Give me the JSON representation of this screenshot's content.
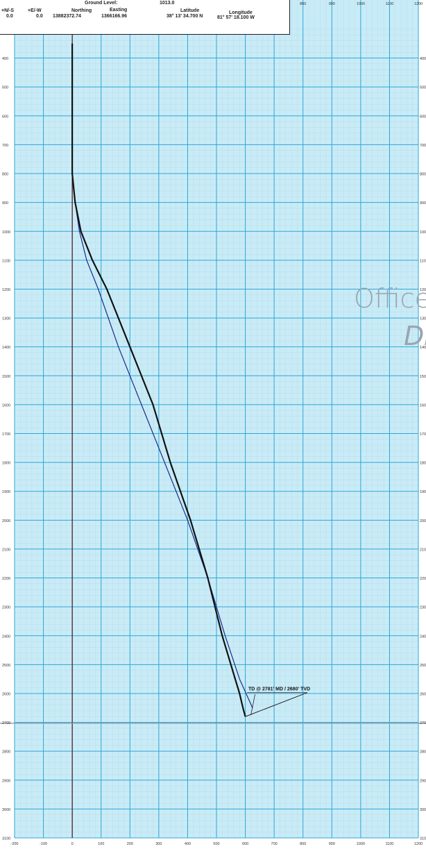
{
  "header": {
    "ground_level_label": "Ground Level:",
    "ground_level_value": "1013.0",
    "ns_label": "+N/-S",
    "ns_value": "0.0",
    "ew_label": "+E/-W",
    "ew_value": "0.0",
    "northing_label": "Northing",
    "northing_value": "13882372.74",
    "easting_label": "Easting",
    "easting_value": "1366166.96",
    "latitude_label": "Latitude",
    "latitude_value": "38° 13' 34.700 N",
    "longitude_label": "Longitude",
    "longitude_value": "81° 57' 18.100 W"
  },
  "watermark": {
    "line1": "Office",
    "line2": "DE"
  },
  "colors": {
    "background": "#c8ecf7",
    "grid_minor": "#bcd9e6",
    "grid_major": "#2fa6d6",
    "plan_line": "#1c2a8a",
    "actual_line": "#111111",
    "vertical_section_line": "#5a1f2a"
  },
  "chart_data": {
    "type": "line",
    "title": "",
    "xlabel": "",
    "ylabel": "",
    "xlim": [
      -200,
      1200
    ],
    "ylim": [
      3100,
      300
    ],
    "x_ticks": [
      -200,
      -100,
      0,
      100,
      200,
      300,
      400,
      500,
      600,
      700,
      800,
      900,
      1000,
      1100,
      1200
    ],
    "y_ticks": [
      400,
      500,
      600,
      700,
      800,
      900,
      1000,
      1100,
      1200,
      1300,
      1400,
      1500,
      1600,
      1700,
      1800,
      1900,
      2000,
      2100,
      2200,
      2300,
      2400,
      2500,
      2600,
      2700,
      2800,
      2900,
      3000,
      3100
    ],
    "top_ticks": [
      800,
      900,
      1000,
      1100,
      1200
    ],
    "grid": true,
    "series": [
      {
        "style": "thin",
        "x": [
          0,
          0,
          10,
          25,
          50,
          90,
          160,
          240,
          320,
          400,
          470,
          530,
          580,
          625
        ],
        "y": [
          350,
          800,
          900,
          1000,
          1100,
          1200,
          1400,
          1600,
          1800,
          2000,
          2200,
          2400,
          2550,
          2650
        ]
      },
      {
        "style": "thick",
        "x": [
          0,
          0,
          10,
          30,
          70,
          120,
          200,
          280,
          340,
          410,
          470,
          520,
          565,
          580,
          592,
          600
        ],
        "y": [
          350,
          800,
          900,
          1000,
          1100,
          1200,
          1400,
          1600,
          1800,
          2000,
          2200,
          2400,
          2550,
          2600,
          2650,
          2680
        ]
      }
    ],
    "annotation": {
      "text": "TD @ 2781' MD / 2680' TVD",
      "x": 815,
      "y": 2597,
      "point_x": 600,
      "point_y": 2680
    }
  }
}
